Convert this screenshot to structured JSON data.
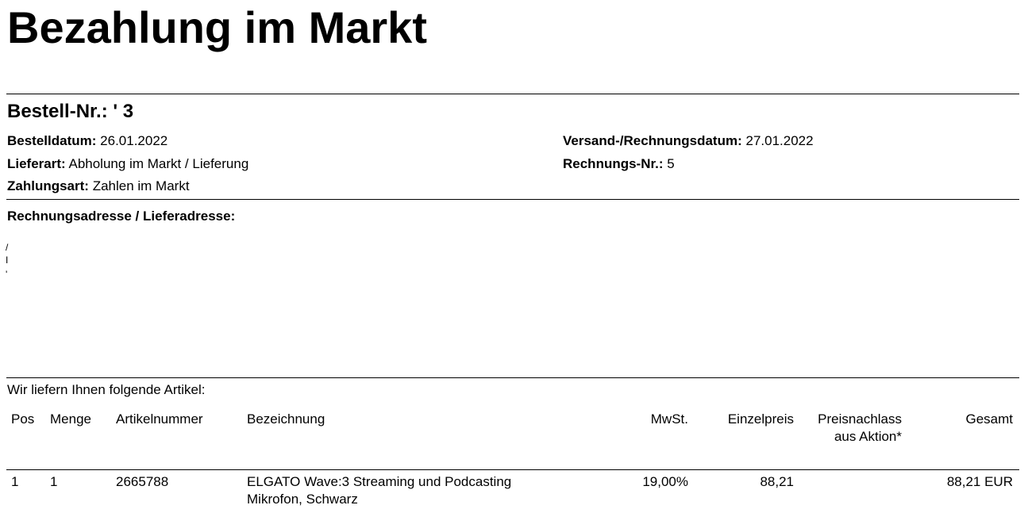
{
  "header": {
    "title": "Bezahlung im Markt"
  },
  "order": {
    "number_label": "Bestell-Nr.:",
    "number": "' 3",
    "left_fields": [
      {
        "label": "Bestelldatum:",
        "value": "26.01.2022"
      },
      {
        "label": "Lieferart:",
        "value": "Abholung im Markt / Lieferung"
      },
      {
        "label": "Zahlungsart:",
        "value": "Zahlen im Markt"
      }
    ],
    "right_fields": [
      {
        "label": "Versand-/Rechnungsdatum:",
        "value": "27.01.2022"
      },
      {
        "label": "Rechnungs-Nr.:",
        "value": "5"
      }
    ]
  },
  "address": {
    "heading": "Rechnungsadresse / Lieferadresse:",
    "lines": [
      "/",
      "I",
      "'"
    ]
  },
  "items": {
    "intro": "Wir liefern Ihnen folgende Artikel:",
    "columns": [
      "Pos",
      "Menge",
      "Artikelnummer",
      "Bezeichnung",
      "MwSt.",
      "Einzelpreis",
      "Preisnachlass aus Aktion*",
      "Gesamt"
    ],
    "rows": [
      [
        "1",
        "1",
        "2665788",
        "ELGATO Wave:3 Streaming und Podcasting Mikrofon, Schwarz",
        "19,00%",
        "88,21",
        "",
        "88,21 EUR"
      ]
    ]
  }
}
